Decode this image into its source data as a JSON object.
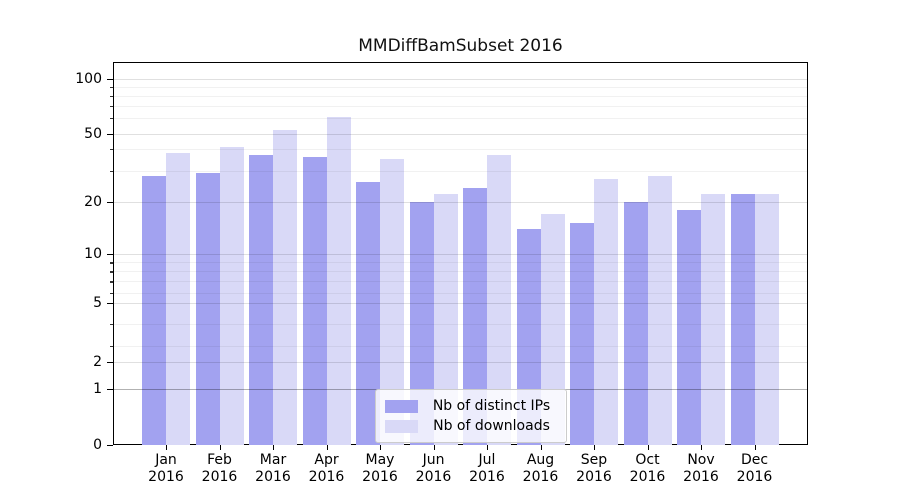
{
  "title": "MMDiffBamSubset 2016",
  "chart_data": {
    "type": "bar",
    "title": "MMDiffBamSubset 2016",
    "categories": [
      "Jan",
      "Feb",
      "Mar",
      "Apr",
      "May",
      "Jun",
      "Jul",
      "Aug",
      "Sep",
      "Oct",
      "Nov",
      "Dec"
    ],
    "x_year_label": "2016",
    "series": [
      {
        "name": "Nb of distinct IPs",
        "color": "#a2a2f0",
        "values": [
          28,
          29,
          37,
          36,
          26,
          20,
          24,
          14,
          15,
          20,
          18,
          22
        ]
      },
      {
        "name": "Nb of downloads",
        "color": "#d9d9f7",
        "values": [
          38,
          41,
          51,
          61,
          35,
          22,
          37,
          17,
          27,
          28,
          22,
          22
        ]
      }
    ],
    "xlabel": "",
    "ylabel": "",
    "yscale": "symlog",
    "y_ticks": [
      100,
      50,
      20,
      10,
      5,
      2,
      1,
      0
    ],
    "ylim": [
      0,
      130
    ],
    "grid": true,
    "legend_position": "lower center"
  }
}
